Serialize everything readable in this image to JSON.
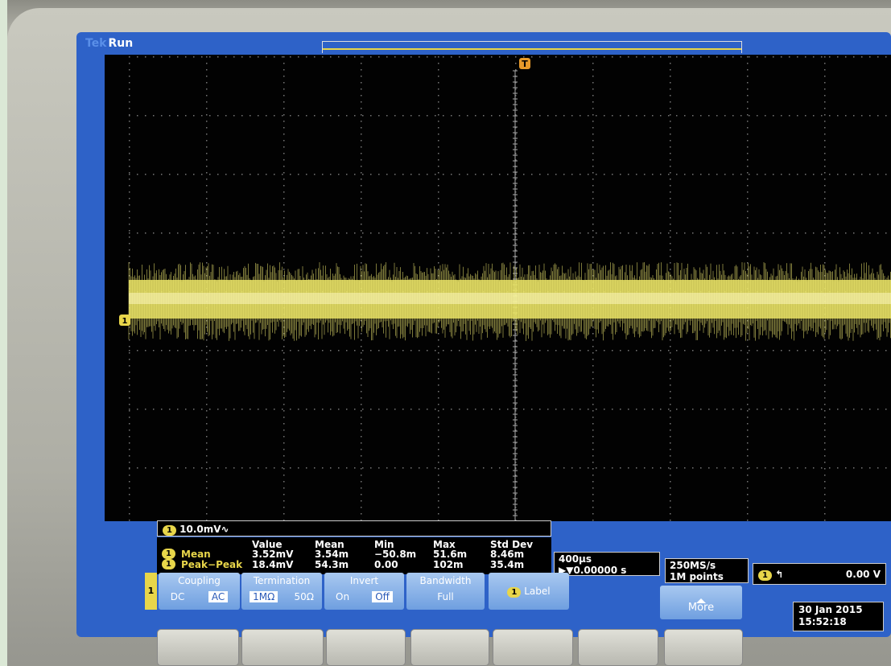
{
  "header": {
    "brand": "Tek",
    "status": "Run",
    "trigger_marker": "T"
  },
  "channel": {
    "marker": "1",
    "scale": "10.0mV∿"
  },
  "measurements": {
    "columns": [
      "Value",
      "Mean",
      "Min",
      "Max",
      "Std Dev"
    ],
    "rows": [
      {
        "channel": "1",
        "name": "Mean",
        "cells": [
          "3.52mV",
          "3.54m",
          "−50.8m",
          "51.6m",
          "8.46m"
        ]
      },
      {
        "channel": "1",
        "name": "Peak−Peak",
        "cells": [
          "18.4mV",
          "54.3m",
          "0.00",
          "102m",
          "35.4m"
        ]
      }
    ]
  },
  "timebase": {
    "scale": "400µs",
    "position": "0.00000 s"
  },
  "acquisition": {
    "rate": "250MS/s",
    "length": "1M points"
  },
  "trigger": {
    "channel": "1",
    "level": "0.00 V"
  },
  "menu": {
    "channel": "1",
    "buttons": [
      {
        "title": "Coupling",
        "options": [
          "DC",
          "AC"
        ]
      },
      {
        "title": "Termination",
        "options": [
          "1MΩ",
          "50Ω"
        ]
      },
      {
        "title": "Invert",
        "options": [
          "On",
          "Off"
        ]
      },
      {
        "title": "Bandwidth",
        "options": [
          "Full"
        ]
      },
      {
        "title": "Label"
      }
    ]
  },
  "more": "More",
  "date": "30 Jan 2015",
  "time": "15:52:18"
}
